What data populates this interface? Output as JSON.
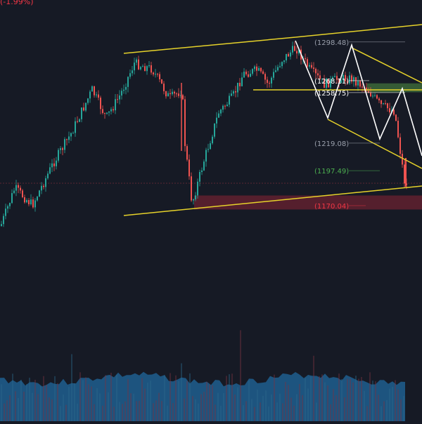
{
  "chart_data": {
    "type": "candlestick",
    "instrument_change": "(-1.99%)",
    "price_levels": [
      {
        "label": "(1298.48)",
        "value": 1298.48,
        "color": "#9aa0ac"
      },
      {
        "label": "(1268.11)",
        "value": 1268.11,
        "color": "#ffffff"
      },
      {
        "label": "(1258.75)",
        "value": 1258.75,
        "color": "#ffffff"
      },
      {
        "label": "(1219.08)",
        "value": 1219.08,
        "color": "#9aa0ac"
      },
      {
        "label": "(1197.49)",
        "value": 1197.49,
        "color": "#4caf50"
      },
      {
        "label": "(1170.04)",
        "value": 1170.04,
        "color": "#f23645"
      }
    ],
    "ylim": [
      1140,
      1320
    ],
    "colors": {
      "background": "#161a25",
      "up_candle": "#26a69a",
      "down_candle": "#ef5350",
      "trend_line": "#e6d22a",
      "pattern_line": "#ffffff",
      "volume_area": "#1f5f8f",
      "demand_zone": "#6b2230",
      "supply_zone": "#3d6b3a"
    }
  }
}
